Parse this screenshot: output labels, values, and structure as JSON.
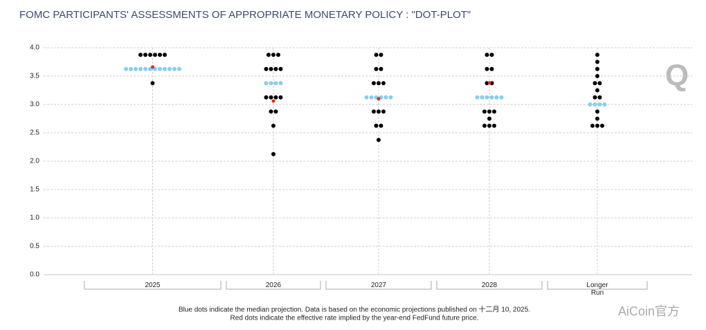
{
  "chart_data": {
    "type": "dot-plot",
    "title": "FOMC PARTICIPANTS' ASSESSMENTS OF APPROPRIATE MONETARY POLICY : \"DOT-PLOT\"",
    "categories": [
      "2025",
      "2026",
      "2027",
      "2028",
      "Longer Run"
    ],
    "values": [
      [
        3.875,
        3.875,
        3.875,
        3.875,
        3.875,
        3.875,
        3.625,
        3.625,
        3.625,
        3.625,
        3.625,
        3.625,
        3.625,
        3.625,
        3.625,
        3.625,
        3.625,
        3.625,
        3.375
      ],
      [
        3.875,
        3.875,
        3.875,
        3.625,
        3.625,
        3.625,
        3.625,
        3.375,
        3.375,
        3.375,
        3.375,
        3.125,
        3.125,
        3.125,
        3.125,
        2.875,
        2.875,
        2.625,
        2.125
      ],
      [
        3.875,
        3.875,
        3.625,
        3.625,
        3.375,
        3.375,
        3.375,
        3.125,
        3.125,
        3.125,
        3.125,
        3.125,
        3.125,
        2.875,
        2.875,
        2.875,
        2.625,
        2.625,
        2.375
      ],
      [
        3.875,
        3.875,
        3.625,
        3.625,
        3.375,
        3.375,
        3.125,
        3.125,
        3.125,
        3.125,
        3.125,
        3.125,
        2.875,
        2.875,
        2.875,
        2.75,
        2.625,
        2.625,
        2.625
      ],
      [
        3.875,
        3.75,
        3.625,
        3.5,
        3.375,
        3.375,
        3.25,
        3.125,
        3.125,
        3.0,
        3.0,
        3.0,
        3.0,
        2.875,
        2.75,
        2.625,
        2.625,
        2.625
      ]
    ],
    "median": [
      3.625,
      3.375,
      3.125,
      3.125,
      3.0
    ],
    "implied_rate": [
      3.66,
      3.06,
      3.1,
      3.38,
      null
    ],
    "dot_color": "#000000",
    "median_color": "#87ceeb",
    "implied_color": "#e8281e",
    "ylim": [
      0,
      4
    ],
    "yticks": [
      {
        "value": 0,
        "label": "0.0"
      },
      0.5,
      {
        "value": 1,
        "label": "1.0"
      },
      1.5,
      {
        "value": 2,
        "label": "2.0"
      },
      2.5,
      {
        "value": 3,
        "label": "3.0"
      },
      3.5,
      {
        "value": 4,
        "label": "4.0"
      }
    ],
    "grid": true,
    "notes": [
      "Blue dots indicate the median projection. Data is based on the economic projections published on 十二月 10, 2025.",
      "Red dots indicate the effective rate implied by the year-end FedFund future price."
    ],
    "logo": "Q",
    "watermark": "AiCoin官方"
  }
}
